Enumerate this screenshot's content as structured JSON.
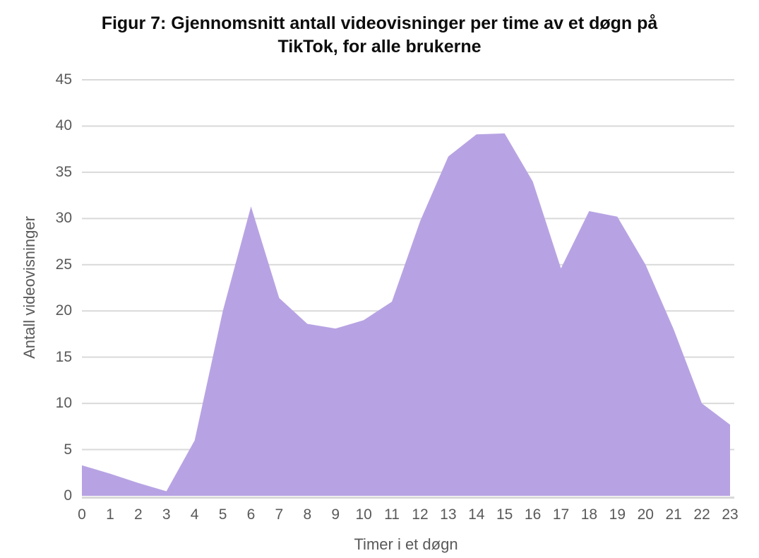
{
  "chart_data": {
    "type": "area",
    "title": "Figur 7: Gjennomsnitt antall videovisninger per time av et døgn på TikTok, for alle brukerne",
    "title_lines": [
      "Figur 7: Gjennomsnitt antall videovisninger per time av et døgn på",
      "TikTok, for alle brukerne"
    ],
    "xlabel": "Timer i et døgn",
    "ylabel": "Antall videovisninger",
    "categories": [
      0,
      1,
      2,
      3,
      4,
      5,
      6,
      7,
      8,
      9,
      10,
      11,
      12,
      13,
      14,
      15,
      16,
      17,
      18,
      19,
      20,
      21,
      22,
      23
    ],
    "values": [
      3.3,
      2.4,
      1.4,
      0.5,
      6.0,
      20.0,
      31.3,
      21.4,
      18.6,
      18.1,
      19.0,
      21.0,
      29.7,
      36.7,
      39.1,
      39.2,
      34.0,
      24.6,
      30.8,
      30.2,
      25.0,
      18.0,
      10.0,
      7.7
    ],
    "y_ticks": [
      0,
      5,
      10,
      15,
      20,
      25,
      30,
      35,
      40,
      45
    ],
    "ylim": [
      0,
      45
    ],
    "xlim": [
      0,
      23
    ],
    "grid": "horizontal",
    "legend": "none",
    "colors": {
      "area_fill": "#b7a3e3",
      "gridline": "#d9d9d9",
      "axis_line": "#d9d9d9",
      "tick_label": "#595959",
      "axis_title": "#595959",
      "title": "#0d0d0d"
    }
  }
}
